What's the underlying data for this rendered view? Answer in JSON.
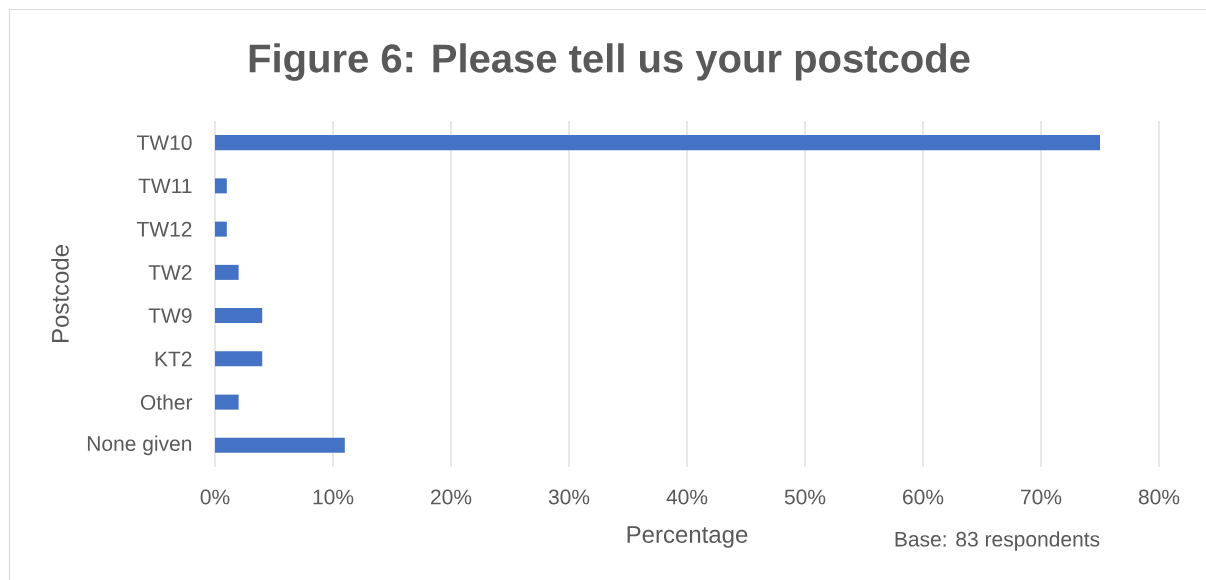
{
  "chart_data": {
    "type": "bar",
    "orientation": "horizontal",
    "title": "Figure 6: Please tell us your postcode",
    "xlabel": "Percentage",
    "ylabel": "Postcode",
    "categories": [
      "TW10",
      "TW11",
      "TW12",
      "TW2",
      "TW9",
      "KT2",
      "Other",
      "None given"
    ],
    "values": [
      75,
      1,
      1,
      2,
      4,
      4,
      2,
      11
    ],
    "color": "#4472c4",
    "xlim": [
      0,
      80
    ],
    "xticks": [
      {
        "value": 0,
        "label": "0%"
      },
      {
        "value": 10,
        "label": "10%"
      },
      {
        "value": 20,
        "label": "20%"
      },
      {
        "value": 30,
        "label": "30%"
      },
      {
        "value": 40,
        "label": "40%"
      },
      {
        "value": 50,
        "label": "50%"
      },
      {
        "value": 60,
        "label": "60%"
      },
      {
        "value": 70,
        "label": "70%"
      },
      {
        "value": 80,
        "label": "80%"
      }
    ],
    "grid": "x",
    "annotations": [
      "Base: 83 respondents"
    ]
  }
}
